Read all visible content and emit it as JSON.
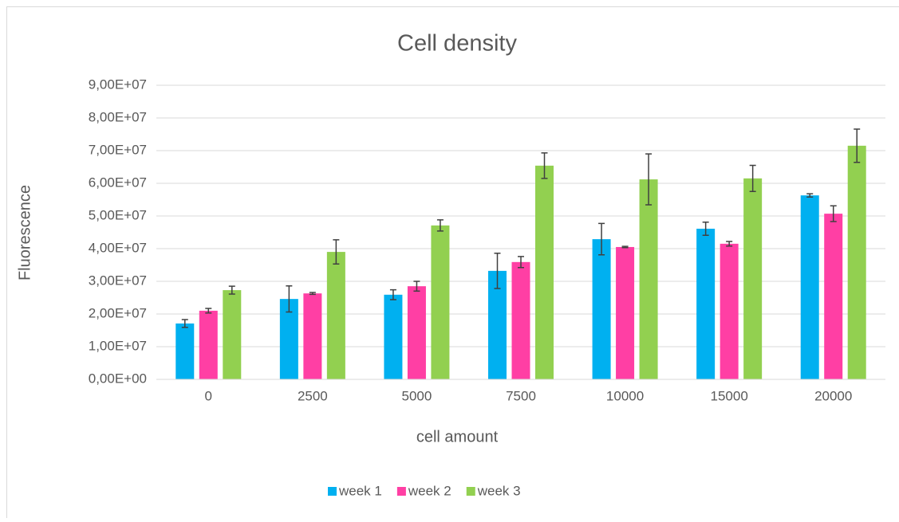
{
  "chart_data": {
    "type": "bar",
    "title": "Cell density",
    "x_label": "cell amount",
    "y_label": "Fluorescence",
    "categories": [
      "0",
      "2500",
      "5000",
      "7500",
      "10000",
      "15000",
      "20000"
    ],
    "series": [
      {
        "name": "week 1",
        "color": "#00b0f0",
        "values": [
          17100000,
          24600000,
          25900000,
          33200000,
          42900000,
          46100000,
          56300000
        ],
        "errors": [
          1200000,
          4000000,
          1500000,
          5400000,
          4800000,
          2000000,
          500000
        ]
      },
      {
        "name": "week 2",
        "color": "#ff3fa4",
        "values": [
          21000000,
          26300000,
          28500000,
          35900000,
          40500000,
          41500000,
          50700000
        ],
        "errors": [
          700000,
          300000,
          1500000,
          1700000,
          200000,
          700000,
          2400000
        ]
      },
      {
        "name": "week 3",
        "color": "#92d050",
        "values": [
          27300000,
          39000000,
          47100000,
          65400000,
          61200000,
          61500000,
          71500000
        ],
        "errors": [
          1200000,
          3700000,
          1700000,
          3900000,
          7800000,
          4000000,
          5100000
        ]
      }
    ],
    "ylim": [
      0,
      90000000
    ],
    "yticks": [
      {
        "value": 0,
        "label": "0,00E+00"
      },
      {
        "value": 10000000,
        "label": "1,00E+07"
      },
      {
        "value": 20000000,
        "label": "2,00E+07"
      },
      {
        "value": 30000000,
        "label": "3,00E+07"
      },
      {
        "value": 40000000,
        "label": "4,00E+07"
      },
      {
        "value": 50000000,
        "label": "5,00E+07"
      },
      {
        "value": 60000000,
        "label": "6,00E+07"
      },
      {
        "value": 70000000,
        "label": "7,00E+07"
      },
      {
        "value": 80000000,
        "label": "8,00E+07"
      },
      {
        "value": 90000000,
        "label": "9,00E+07"
      }
    ],
    "grid": true,
    "legend": "bottom"
  }
}
